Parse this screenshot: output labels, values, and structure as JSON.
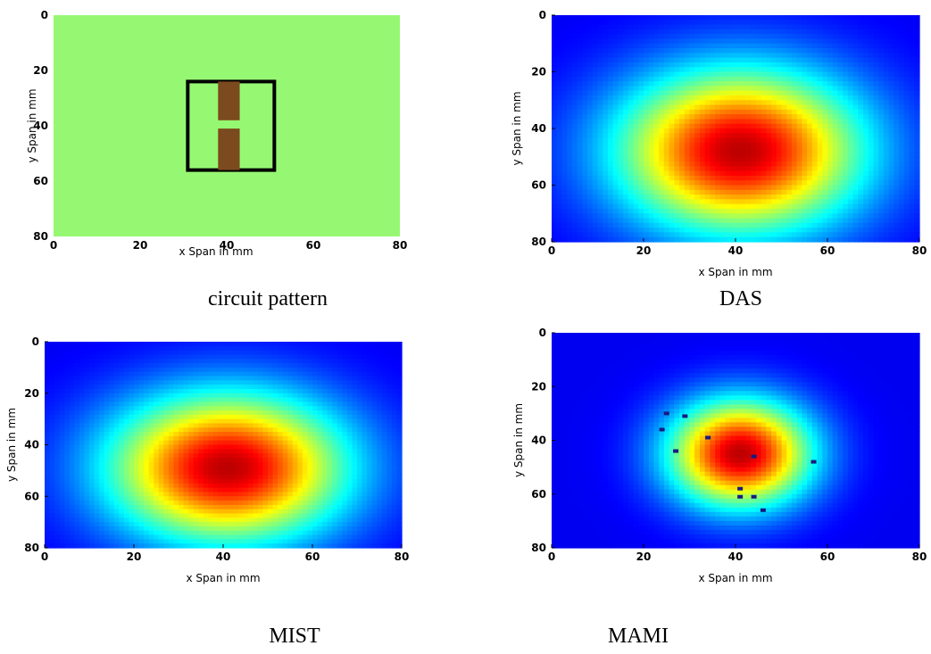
{
  "captions": {
    "top_left": "circuit pattern",
    "top_right": "DAS",
    "bottom_left": "MIST",
    "bottom_right": "MAMI"
  },
  "axes": {
    "xlabel": "x Span in mm",
    "ylabel": "y Span in mm",
    "x_ticks": [
      "0",
      "20",
      "40",
      "60",
      "80"
    ],
    "y_ticks": [
      "0",
      "20",
      "40",
      "60",
      "80"
    ]
  },
  "colors": {
    "board_green": "#96f872",
    "component_brown": "#7b4a1e",
    "outline_black": "#000000",
    "jet_background": "#0a1fd0",
    "defect_dot": "#1a1a80"
  },
  "chart_data": [
    {
      "type": "heatmap",
      "title": "circuit pattern",
      "xlabel": "x Span in mm",
      "ylabel": "y Span in mm",
      "xlim": [
        0,
        80
      ],
      "ylim": [
        80,
        0
      ],
      "grid": false,
      "background": "uniform green board",
      "components": [
        {
          "shape": "rectangle outline",
          "x": [
            31,
            51
          ],
          "y": [
            24,
            56
          ]
        },
        {
          "shape": "filled bar",
          "x": [
            38,
            43
          ],
          "y": [
            24,
            38
          ]
        },
        {
          "shape": "filled bar",
          "x": [
            38,
            43
          ],
          "y": [
            41,
            56
          ]
        }
      ]
    },
    {
      "type": "heatmap",
      "title": "DAS",
      "xlabel": "x Span in mm",
      "ylabel": "y Span in mm",
      "xlim": [
        0,
        80
      ],
      "ylim": [
        80,
        0
      ],
      "colormap": "jet",
      "grid": false,
      "peak": {
        "x": 41,
        "y": 48
      },
      "spread": {
        "sx": 12,
        "sy": 13
      }
    },
    {
      "type": "heatmap",
      "title": "MIST",
      "xlabel": "x Span in mm",
      "ylabel": "y Span in mm",
      "xlim": [
        0,
        80
      ],
      "ylim": [
        80,
        0
      ],
      "colormap": "jet",
      "grid": false,
      "peak": {
        "x": 41,
        "y": 49
      },
      "spread": {
        "sx": 12,
        "sy": 13
      }
    },
    {
      "type": "heatmap",
      "title": "MAMI",
      "xlabel": "x Span in mm",
      "ylabel": "y Span in mm",
      "xlim": [
        0,
        80
      ],
      "ylim": [
        80,
        0
      ],
      "colormap": "jet",
      "grid": false,
      "peak": {
        "x": 41,
        "y": 45
      },
      "spread": {
        "sx": 7,
        "sy": 9
      },
      "artifacts": [
        {
          "x": 25,
          "y": 30
        },
        {
          "x": 29,
          "y": 31
        },
        {
          "x": 24,
          "y": 36
        },
        {
          "x": 34,
          "y": 39
        },
        {
          "x": 27,
          "y": 44
        },
        {
          "x": 44,
          "y": 46
        },
        {
          "x": 57,
          "y": 48
        },
        {
          "x": 41,
          "y": 58
        },
        {
          "x": 41,
          "y": 61
        },
        {
          "x": 44,
          "y": 61
        },
        {
          "x": 46,
          "y": 66
        }
      ]
    }
  ]
}
